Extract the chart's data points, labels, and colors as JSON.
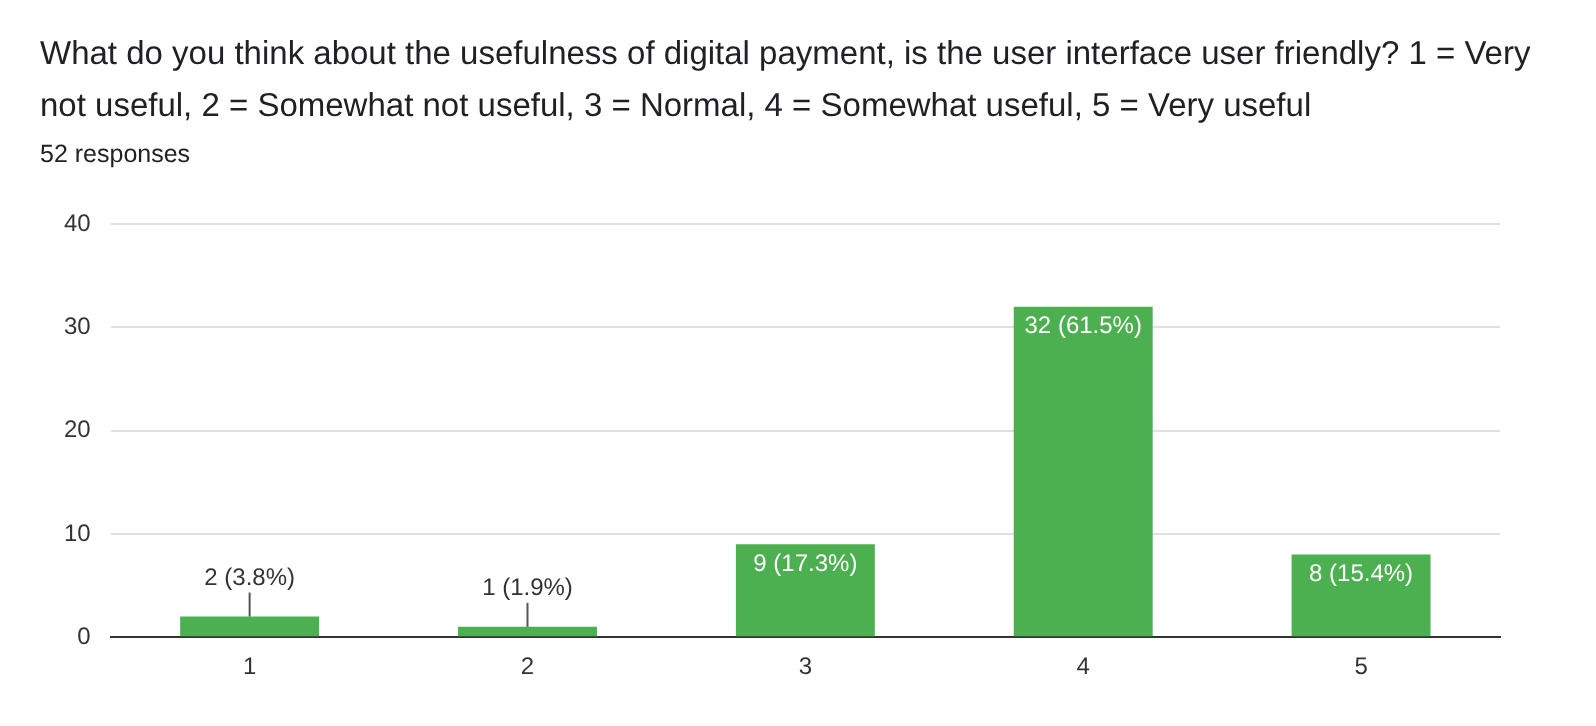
{
  "chart_data": {
    "type": "bar",
    "title": "What do you think about the usefulness of digital payment, is the user interface user friendly? 1 = Very not useful, 2 = Somewhat not useful, 3 = Normal, 4 = Somewhat useful, 5 = Very useful",
    "subtitle": "52 responses",
    "categories": [
      "1",
      "2",
      "3",
      "4",
      "5"
    ],
    "values": [
      2,
      1,
      9,
      32,
      8
    ],
    "value_labels": [
      "2 (3.8%)",
      "1 (1.9%)",
      "9 (17.3%)",
      "32 (61.5%)",
      "8 (15.4%)"
    ],
    "color": "#4caf50",
    "ylim": [
      0,
      40
    ],
    "yticks": [
      0,
      10,
      20,
      30,
      40
    ],
    "grid": "y",
    "legend": false
  }
}
